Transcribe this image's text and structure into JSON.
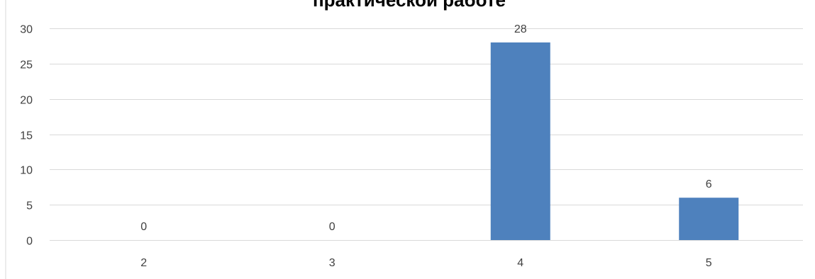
{
  "chart_data": {
    "type": "bar",
    "title": "практической работе",
    "categories": [
      "2",
      "3",
      "4",
      "5"
    ],
    "values": [
      0,
      0,
      28,
      6
    ],
    "data_labels": [
      "0",
      "0",
      "28",
      "6"
    ],
    "ylim": [
      0,
      30
    ],
    "y_ticks": [
      0,
      5,
      10,
      15,
      20,
      25,
      30
    ],
    "xlabel": "",
    "ylabel": "",
    "grid": true,
    "legend": "none",
    "bar_color": "#4e81bd",
    "grid_color": "#d9d9d9",
    "text_color": "#404040"
  }
}
